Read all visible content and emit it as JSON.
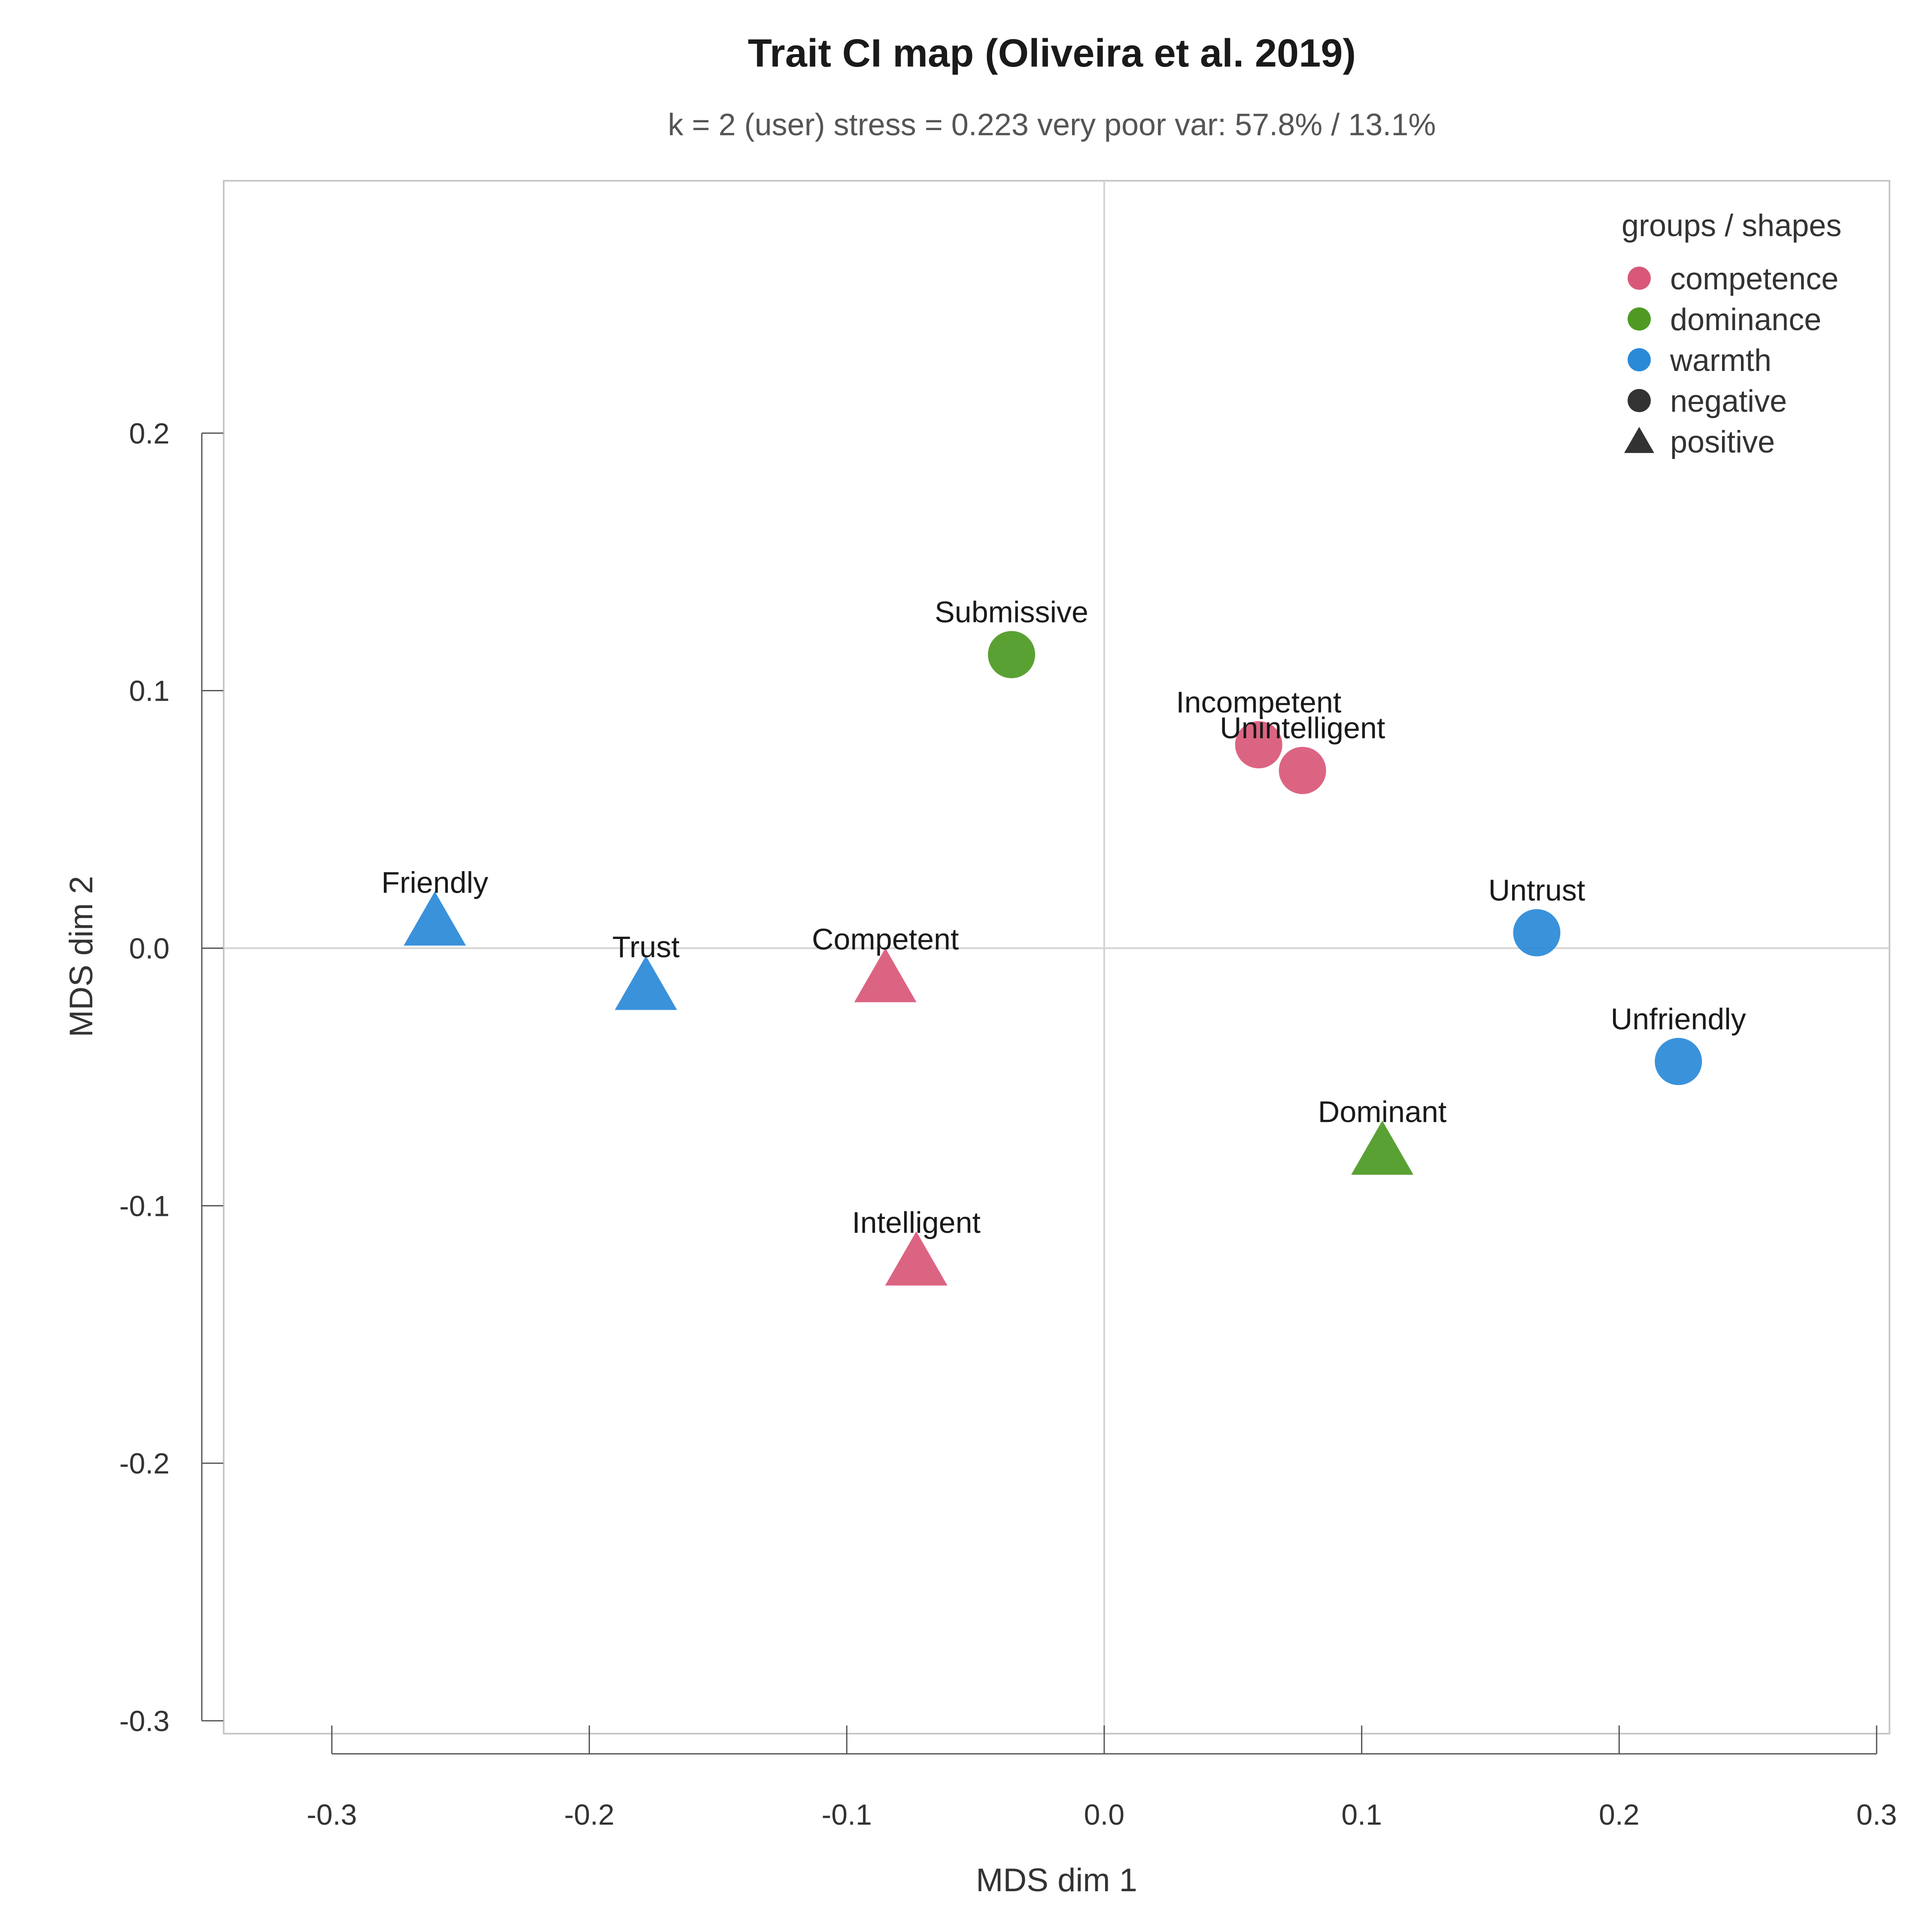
{
  "chart_data": {
    "type": "scatter",
    "title": "Trait CI map (Oliveira et al. 2019)",
    "subtitle": "k = 2 (user)  stress = 0.223 very poor  var: 57.8% / 13.1%",
    "xlabel": "MDS dim 1",
    "ylabel": "MDS dim 2",
    "xlim": [
      -0.342,
      0.305
    ],
    "ylim": [
      -0.305,
      0.298
    ],
    "xticks": [
      -0.3,
      -0.2,
      -0.1,
      0.0,
      0.1,
      0.2,
      0.3
    ],
    "xtick_labels": [
      "-0.3",
      "-0.2",
      "-0.1",
      "0.0",
      "0.1",
      "0.2",
      "0.3"
    ],
    "yticks": [
      -0.3,
      -0.2,
      -0.1,
      0.0,
      0.1,
      0.2
    ],
    "ytick_labels": [
      "-0.3",
      "-0.2",
      "-0.1",
      "0.0",
      "0.1",
      "0.2"
    ],
    "reference_lines": {
      "x": 0.0,
      "y": 0.0
    },
    "grid": false,
    "legend": {
      "title": "groups / shapes",
      "placement": "top-right",
      "groups": [
        {
          "label": "competence",
          "color": "#d9587a"
        },
        {
          "label": "dominance",
          "color": "#4e9a23"
        },
        {
          "label": "warmth",
          "color": "#2b8ad8"
        }
      ],
      "shapes": [
        {
          "label": "negative",
          "shape": "circle"
        },
        {
          "label": "positive",
          "shape": "triangle"
        }
      ]
    },
    "colors": {
      "competence": "#d9587a",
      "dominance": "#4e9a23",
      "warmth": "#2b8ad8",
      "shape_key": "#333333"
    },
    "points": [
      {
        "label": "Submissive",
        "x": -0.036,
        "y": 0.114,
        "group": "dominance",
        "valence": "negative"
      },
      {
        "label": "Incompetent",
        "x": 0.06,
        "y": 0.079,
        "group": "competence",
        "valence": "negative"
      },
      {
        "label": "Unintelligent",
        "x": 0.077,
        "y": 0.069,
        "group": "competence",
        "valence": "negative"
      },
      {
        "label": "Friendly",
        "x": -0.26,
        "y": 0.009,
        "group": "warmth",
        "valence": "positive"
      },
      {
        "label": "Trust",
        "x": -0.178,
        "y": -0.016,
        "group": "warmth",
        "valence": "positive"
      },
      {
        "label": "Competent",
        "x": -0.085,
        "y": -0.013,
        "group": "competence",
        "valence": "positive"
      },
      {
        "label": "Untrust",
        "x": 0.168,
        "y": 0.006,
        "group": "warmth",
        "valence": "negative"
      },
      {
        "label": "Unfriendly",
        "x": 0.223,
        "y": -0.044,
        "group": "warmth",
        "valence": "negative"
      },
      {
        "label": "Dominant",
        "x": 0.108,
        "y": -0.08,
        "group": "dominance",
        "valence": "positive"
      },
      {
        "label": "Intelligent",
        "x": -0.073,
        "y": -0.123,
        "group": "competence",
        "valence": "positive"
      }
    ]
  }
}
